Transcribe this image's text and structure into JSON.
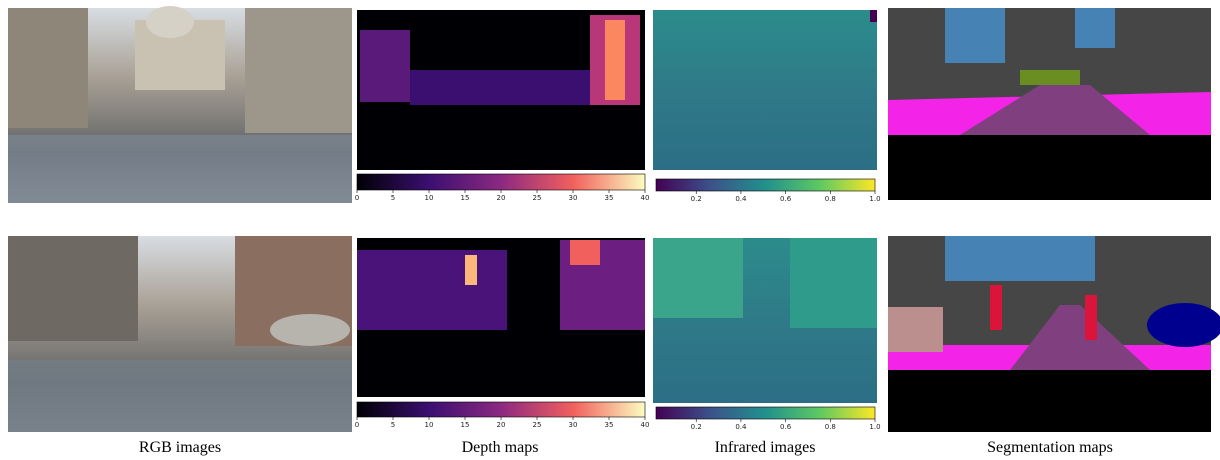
{
  "columns": [
    {
      "caption": "RGB images"
    },
    {
      "caption": "Depth maps"
    },
    {
      "caption": "Infrared images"
    },
    {
      "caption": "Segmentation maps"
    }
  ],
  "colorbars": {
    "depth": {
      "lim": [
        0,
        40
      ],
      "ticks": [
        0,
        5,
        10,
        15,
        20,
        25,
        30,
        35,
        40
      ]
    },
    "infrared": {
      "lim": [
        0.02,
        1
      ],
      "ticks": [
        0.2,
        0.4,
        0.6,
        0.8,
        {
          "value": 1,
          "label": "1.0"
        }
      ]
    }
  }
}
